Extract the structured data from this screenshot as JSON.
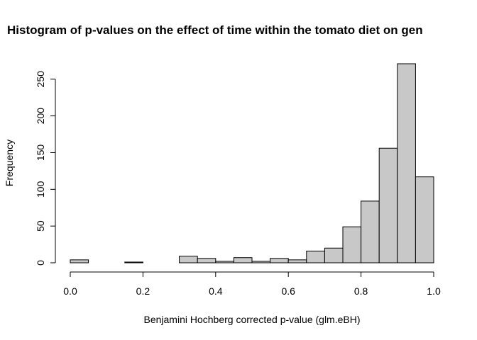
{
  "chart_data": {
    "type": "bar",
    "title": "Histogram of p-values on the effect of time within the tomato diet on gen",
    "xlabel": "Benjamini Hochberg corrected p-value (glm.eBH)",
    "ylabel": "Frequency",
    "bin_edges": [
      0.0,
      0.05,
      0.1,
      0.15,
      0.2,
      0.25,
      0.3,
      0.35,
      0.4,
      0.45,
      0.5,
      0.55,
      0.6,
      0.65,
      0.7,
      0.75,
      0.8,
      0.85,
      0.9,
      0.95,
      1.0
    ],
    "values": [
      4,
      0,
      0,
      1,
      0,
      0,
      9,
      6,
      2,
      7,
      2,
      6,
      4,
      16,
      20,
      49,
      84,
      156,
      271,
      117
    ],
    "xlim": [
      0,
      1
    ],
    "ylim": [
      0,
      271
    ],
    "x_ticks": [
      0.0,
      0.2,
      0.4,
      0.6,
      0.8,
      1.0
    ],
    "x_tick_labels": [
      "0.0",
      "0.2",
      "0.4",
      "0.6",
      "0.8",
      "1.0"
    ],
    "y_ticks": [
      0,
      50,
      100,
      150,
      200,
      250
    ],
    "y_tick_labels": [
      "0",
      "50",
      "100",
      "150",
      "200",
      "250"
    ],
    "bar_color": "#c8c8c8",
    "grid": false,
    "legend": "none"
  }
}
